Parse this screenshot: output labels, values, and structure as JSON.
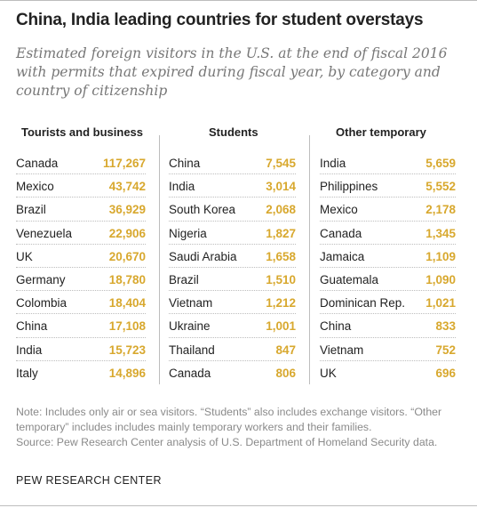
{
  "header": {
    "title": "China, India leading countries for student overstays",
    "subtitle": "Estimated foreign visitors in the U.S. at the end of fiscal 2016 with permits that expired during fiscal year, by category and country of citizenship"
  },
  "chart_data": {
    "type": "table",
    "title": "China, India leading countries for student overstays",
    "subtitle": "Estimated foreign visitors in the U.S. at the end of fiscal 2016 with permits that expired during fiscal year, by category and country of citizenship",
    "columns": [
      {
        "name": "Tourists and business",
        "rows": [
          {
            "country": "Canada",
            "value": "117,267"
          },
          {
            "country": "Mexico",
            "value": "43,742"
          },
          {
            "country": "Brazil",
            "value": "36,929"
          },
          {
            "country": "Venezuela",
            "value": "22,906"
          },
          {
            "country": "UK",
            "value": "20,670"
          },
          {
            "country": "Germany",
            "value": "18,780"
          },
          {
            "country": "Colombia",
            "value": "18,404"
          },
          {
            "country": "China",
            "value": "17,108"
          },
          {
            "country": "India",
            "value": "15,723"
          },
          {
            "country": "Italy",
            "value": "14,896"
          }
        ]
      },
      {
        "name": "Students",
        "rows": [
          {
            "country": "China",
            "value": "7,545"
          },
          {
            "country": "India",
            "value": "3,014"
          },
          {
            "country": "South Korea",
            "value": "2,068"
          },
          {
            "country": "Nigeria",
            "value": "1,827"
          },
          {
            "country": "Saudi Arabia",
            "value": "1,658"
          },
          {
            "country": "Brazil",
            "value": "1,510"
          },
          {
            "country": "Vietnam",
            "value": "1,212"
          },
          {
            "country": "Ukraine",
            "value": "1,001"
          },
          {
            "country": "Thailand",
            "value": "847"
          },
          {
            "country": "Canada",
            "value": "806"
          }
        ]
      },
      {
        "name": "Other temporary",
        "rows": [
          {
            "country": "India",
            "value": "5,659"
          },
          {
            "country": "Philippines",
            "value": "5,552"
          },
          {
            "country": "Mexico",
            "value": "2,178"
          },
          {
            "country": "Canada",
            "value": "1,345"
          },
          {
            "country": "Jamaica",
            "value": "1,109"
          },
          {
            "country": "Guatemala",
            "value": "1,090"
          },
          {
            "country": "Dominican Rep.",
            "value": "1,021"
          },
          {
            "country": "China",
            "value": "833"
          },
          {
            "country": "Vietnam",
            "value": "752"
          },
          {
            "country": "UK",
            "value": "696"
          }
        ]
      }
    ],
    "value_color": "#d8a82e"
  },
  "footer": {
    "note": "Note: Includes only air or sea visitors. “Students” also includes exchange visitors. “Other temporary” includes includes mainly temporary workers and their families.",
    "source": "Source: Pew Research Center analysis of U.S. Department of Homeland Security data.",
    "brand": "PEW RESEARCH CENTER"
  }
}
